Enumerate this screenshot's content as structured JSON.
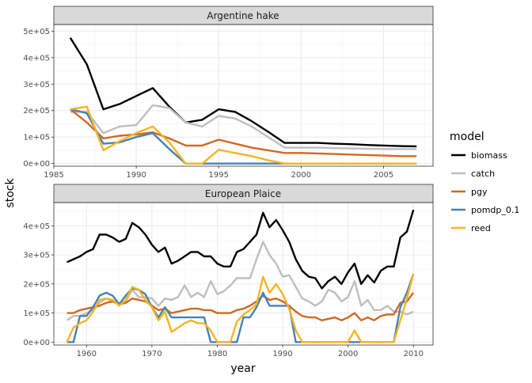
{
  "figure": {
    "ylabel": "stock",
    "xlabel": "year",
    "legend_title": "model"
  },
  "legend": [
    {
      "name": "biomass",
      "color": "#000000"
    },
    {
      "name": "catch",
      "color": "#bebebe"
    },
    {
      "name": "pgy",
      "color": "#d2691e"
    },
    {
      "name": "pomdp_0.1",
      "color": "#4682b4"
    },
    {
      "name": "reed",
      "color": "#f8b422"
    }
  ],
  "chart_data": [
    {
      "type": "line",
      "title": "Argentine hake",
      "xlabel": "year",
      "ylabel": "stock",
      "xlim": [
        1985,
        2008
      ],
      "ylim": [
        -10000,
        525000
      ],
      "xticks": [
        1985,
        1990,
        1995,
        2000,
        2005
      ],
      "xtick_labels": [
        "1985",
        "1990",
        "1995",
        "2000",
        "2005"
      ],
      "yticks": [
        0,
        100000,
        200000,
        300000,
        400000,
        500000
      ],
      "ytick_labels": [
        "0e+00",
        "1e+05",
        "2e+05",
        "3e+05",
        "4e+05",
        "5e+05"
      ],
      "grid": true,
      "legend_position": "right",
      "series": [
        {
          "name": "biomass",
          "x": [
            1986,
            1987,
            1988,
            1989,
            1990,
            1991,
            1992,
            1993,
            1994,
            1995,
            1996,
            1997,
            1998,
            1999,
            2000,
            2001,
            2002,
            2003,
            2004,
            2005,
            2006,
            2007
          ],
          "values": [
            475000,
            375000,
            205000,
            225000,
            255000,
            285000,
            215000,
            155000,
            165000,
            205000,
            195000,
            160000,
            120000,
            78000,
            78000,
            78000,
            75000,
            73000,
            70000,
            68000,
            66000,
            65000
          ]
        },
        {
          "name": "catch",
          "x": [
            1986,
            1987,
            1988,
            1989,
            1990,
            1991,
            1992,
            1993,
            1994,
            1995,
            1996,
            1997,
            1998,
            1999,
            2000,
            2001,
            2002,
            2003,
            2004,
            2005,
            2006,
            2007
          ],
          "values": [
            195000,
            195000,
            115000,
            140000,
            145000,
            220000,
            210000,
            155000,
            140000,
            180000,
            170000,
            140000,
            100000,
            60000,
            60000,
            60000,
            58000,
            57000,
            56000,
            55000,
            55000,
            55000
          ]
        },
        {
          "name": "pgy",
          "x": [
            1986,
            1987,
            1988,
            1989,
            1990,
            1991,
            1992,
            1993,
            1994,
            1995,
            1996,
            1997,
            1998,
            1999,
            2000,
            2001,
            2002,
            2003,
            2004,
            2005,
            2006,
            2007
          ],
          "values": [
            205000,
            155000,
            95000,
            105000,
            110000,
            118000,
            95000,
            68000,
            68000,
            90000,
            75000,
            60000,
            50000,
            40000,
            40000,
            38000,
            36000,
            34000,
            32000,
            30000,
            28000,
            28000
          ]
        },
        {
          "name": "pomdp_0.1",
          "x": [
            1986,
            1987,
            1988,
            1989,
            1990,
            1991,
            1992,
            1993,
            1994,
            1995,
            1996,
            1997,
            1998,
            1999,
            2000,
            2001,
            2002,
            2003,
            2004,
            2005,
            2006,
            2007
          ],
          "values": [
            205000,
            190000,
            75000,
            80000,
            100000,
            115000,
            55000,
            0,
            0,
            0,
            0,
            0,
            0,
            0,
            0,
            0,
            0,
            0,
            0,
            0,
            0,
            0
          ]
        },
        {
          "name": "reed",
          "x": [
            1986,
            1987,
            1988,
            1989,
            1990,
            1991,
            1992,
            1993,
            1994,
            1995,
            1996,
            1997,
            1998,
            1999,
            2000,
            2001,
            2002,
            2003,
            2004,
            2005,
            2006,
            2007
          ],
          "values": [
            205000,
            215000,
            50000,
            85000,
            115000,
            140000,
            80000,
            0,
            0,
            52000,
            40000,
            28000,
            12000,
            0,
            0,
            0,
            0,
            0,
            0,
            0,
            0,
            0
          ]
        }
      ]
    },
    {
      "type": "line",
      "title": "European Plaice",
      "xlabel": "year",
      "ylabel": "stock",
      "xlim": [
        1955,
        2013
      ],
      "ylim": [
        -10000,
        480000
      ],
      "xticks": [
        1960,
        1970,
        1980,
        1990,
        2000,
        2010
      ],
      "xtick_labels": [
        "1960",
        "1970",
        "1980",
        "1990",
        "2000",
        "2010"
      ],
      "yticks": [
        0,
        100000,
        200000,
        300000,
        400000
      ],
      "ytick_labels": [
        "0e+00",
        "1e+05",
        "2e+05",
        "3e+05",
        "4e+05"
      ],
      "grid": true,
      "legend_position": "right",
      "series": [
        {
          "name": "biomass",
          "x": [
            1957,
            1958,
            1959,
            1960,
            1961,
            1962,
            1963,
            1964,
            1965,
            1966,
            1967,
            1968,
            1969,
            1970,
            1971,
            1972,
            1973,
            1974,
            1975,
            1976,
            1977,
            1978,
            1979,
            1980,
            1981,
            1982,
            1983,
            1984,
            1985,
            1986,
            1987,
            1988,
            1989,
            1990,
            1991,
            1992,
            1993,
            1994,
            1995,
            1996,
            1997,
            1998,
            1999,
            2000,
            2001,
            2002,
            2003,
            2004,
            2005,
            2006,
            2007,
            2008,
            2009,
            2010
          ],
          "values": [
            275000,
            285000,
            295000,
            310000,
            320000,
            370000,
            370000,
            360000,
            345000,
            355000,
            410000,
            395000,
            370000,
            335000,
            310000,
            325000,
            270000,
            280000,
            295000,
            310000,
            310000,
            295000,
            295000,
            270000,
            260000,
            260000,
            310000,
            320000,
            345000,
            370000,
            445000,
            395000,
            420000,
            385000,
            345000,
            285000,
            245000,
            225000,
            220000,
            185000,
            210000,
            225000,
            200000,
            240000,
            270000,
            200000,
            230000,
            205000,
            245000,
            260000,
            260000,
            360000,
            380000,
            455000
          ]
        },
        {
          "name": "catch",
          "x": [
            1957,
            1958,
            1959,
            1960,
            1961,
            1962,
            1963,
            1964,
            1965,
            1966,
            1967,
            1968,
            1969,
            1970,
            1971,
            1972,
            1973,
            1974,
            1975,
            1976,
            1977,
            1978,
            1979,
            1980,
            1981,
            1982,
            1983,
            1984,
            1985,
            1986,
            1987,
            1988,
            1989,
            1990,
            1991,
            1992,
            1993,
            1994,
            1995,
            1996,
            1997,
            1998,
            1999,
            2000,
            2001,
            2002,
            2003,
            2004,
            2005,
            2006,
            2007,
            2008,
            2009,
            2010
          ],
          "values": [
            75000,
            90000,
            90000,
            100000,
            110000,
            135000,
            150000,
            140000,
            130000,
            140000,
            180000,
            155000,
            155000,
            150000,
            125000,
            150000,
            145000,
            155000,
            195000,
            155000,
            170000,
            155000,
            210000,
            165000,
            175000,
            195000,
            220000,
            220000,
            220000,
            285000,
            345000,
            300000,
            270000,
            225000,
            230000,
            190000,
            150000,
            140000,
            125000,
            140000,
            180000,
            170000,
            140000,
            155000,
            210000,
            125000,
            145000,
            110000,
            110000,
            125000,
            105000,
            105000,
            95000,
            105000
          ]
        },
        {
          "name": "pgy",
          "x": [
            1957,
            1958,
            1959,
            1960,
            1961,
            1962,
            1963,
            1964,
            1965,
            1966,
            1967,
            1968,
            1969,
            1970,
            1971,
            1972,
            1973,
            1974,
            1975,
            1976,
            1977,
            1978,
            1979,
            1980,
            1981,
            1982,
            1983,
            1984,
            1985,
            1986,
            1987,
            1988,
            1989,
            1990,
            1991,
            1992,
            1993,
            1994,
            1995,
            1996,
            1997,
            1998,
            1999,
            2000,
            2001,
            2002,
            2003,
            2004,
            2005,
            2006,
            2007,
            2008,
            2009,
            2010
          ],
          "values": [
            100000,
            100000,
            110000,
            115000,
            120000,
            125000,
            135000,
            140000,
            130000,
            135000,
            150000,
            145000,
            140000,
            125000,
            110000,
            115000,
            100000,
            105000,
            110000,
            115000,
            115000,
            110000,
            110000,
            100000,
            100000,
            100000,
            110000,
            115000,
            125000,
            140000,
            160000,
            145000,
            150000,
            140000,
            125000,
            105000,
            90000,
            85000,
            85000,
            75000,
            80000,
            85000,
            75000,
            85000,
            100000,
            75000,
            85000,
            75000,
            90000,
            95000,
            95000,
            135000,
            140000,
            170000
          ]
        },
        {
          "name": "pomdp_0.1",
          "x": [
            1957,
            1958,
            1959,
            1960,
            1961,
            1962,
            1963,
            1964,
            1965,
            1966,
            1967,
            1968,
            1969,
            1970,
            1971,
            1972,
            1973,
            1974,
            1975,
            1976,
            1977,
            1978,
            1979,
            1980,
            1981,
            1982,
            1983,
            1984,
            1985,
            1986,
            1987,
            1988,
            1989,
            1990,
            1991,
            1992,
            1993,
            1994,
            1995,
            1996,
            1997,
            1998,
            1999,
            2000,
            2001,
            2002,
            2003,
            2004,
            2005,
            2006,
            2007,
            2008,
            2009,
            2010
          ],
          "values": [
            0,
            0,
            90000,
            90000,
            120000,
            160000,
            170000,
            160000,
            130000,
            160000,
            185000,
            180000,
            165000,
            120000,
            85000,
            120000,
            85000,
            85000,
            85000,
            85000,
            85000,
            85000,
            0,
            0,
            0,
            0,
            0,
            85000,
            85000,
            120000,
            170000,
            125000,
            125000,
            125000,
            125000,
            0,
            0,
            0,
            0,
            0,
            0,
            0,
            0,
            0,
            0,
            0,
            0,
            0,
            0,
            0,
            0,
            120000,
            170000,
            235000
          ]
        },
        {
          "name": "reed",
          "x": [
            1957,
            1958,
            1959,
            1960,
            1961,
            1962,
            1963,
            1964,
            1965,
            1966,
            1967,
            1968,
            1969,
            1970,
            1971,
            1972,
            1973,
            1974,
            1975,
            1976,
            1977,
            1978,
            1979,
            1980,
            1981,
            1982,
            1983,
            1984,
            1985,
            1986,
            1987,
            1988,
            1989,
            1990,
            1991,
            1992,
            1993,
            1994,
            1995,
            1996,
            1997,
            1998,
            1999,
            2000,
            2001,
            2002,
            2003,
            2004,
            2005,
            2006,
            2007,
            2008,
            2009,
            2010
          ],
          "values": [
            0,
            50000,
            65000,
            75000,
            105000,
            145000,
            150000,
            145000,
            125000,
            145000,
            190000,
            180000,
            145000,
            120000,
            75000,
            105000,
            35000,
            50000,
            65000,
            75000,
            65000,
            65000,
            40000,
            0,
            0,
            0,
            70000,
            95000,
            110000,
            130000,
            225000,
            170000,
            200000,
            165000,
            115000,
            40000,
            0,
            0,
            0,
            0,
            0,
            0,
            0,
            0,
            40000,
            0,
            0,
            0,
            0,
            0,
            0,
            75000,
            150000,
            235000
          ]
        }
      ]
    }
  ]
}
